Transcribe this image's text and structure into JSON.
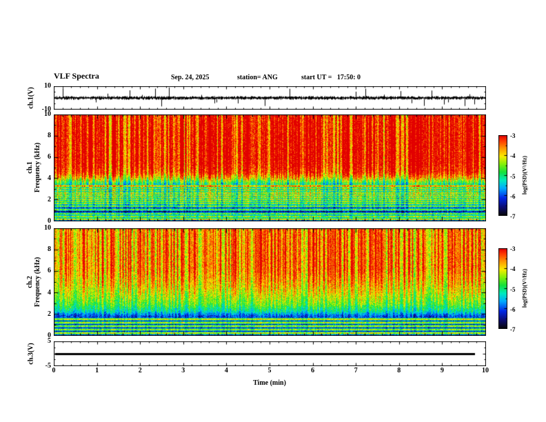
{
  "header": {
    "title": "VLF Spectra",
    "date": "Sep. 24, 2025",
    "station": "station= ANG",
    "start_ut": "start UT =   17:50: 0"
  },
  "xaxis": {
    "label": "Time (min)",
    "tick_labels": [
      "0",
      "1",
      "2",
      "3",
      "4",
      "5",
      "6",
      "7",
      "8",
      "9",
      "10"
    ],
    "range_min": [
      0,
      10
    ]
  },
  "colorbar": {
    "label": "log(PSD)(V²/Hz)",
    "tick_labels": [
      "-3",
      "-4",
      "-5",
      "-6",
      "-7"
    ],
    "range": [
      -7,
      -3
    ]
  },
  "panels": {
    "wave1": {
      "axis_label": "ch.1(V)",
      "ylim": [
        -10,
        10
      ],
      "ytick_labels": [
        10,
        -10
      ]
    },
    "spec1": {
      "axis_label_line1": "ch.1",
      "axis_label_line2": "Frequency (kHz)",
      "ylim": [
        0,
        10
      ],
      "ytick_labels": [
        0,
        2,
        4,
        6,
        8,
        10
      ]
    },
    "spec2": {
      "axis_label_line1": "ch.2",
      "axis_label_line2": "Frequency (kHz)",
      "ylim": [
        0,
        10
      ],
      "ytick_labels": [
        0,
        2,
        4,
        6,
        8,
        10
      ]
    },
    "wave3": {
      "axis_label": "ch.3(V)",
      "ylim": [
        -5,
        5
      ],
      "ytick_labels": [
        5,
        -5
      ]
    }
  },
  "style": {
    "background": "#ffffff",
    "frame": "#000000"
  },
  "chart_data": [
    {
      "type": "line",
      "name": "ch1_waveform",
      "panel_label": "ch.1(V)",
      "x_range_min": [
        0,
        10
      ],
      "ylim_v": [
        -10,
        10
      ],
      "summary": "Dense broadband noise band about 0 V (roughly ±1.5 V) with frequent impulsive sferic spikes reaching ±9 V",
      "gen": {
        "noise_vmin": 0.3,
        "noise_vmax": 1.6,
        "spike_prob": 0.05,
        "spike_vmin": 2.5,
        "spike_vmax": 9
      },
      "seed": 424242
    },
    {
      "type": "heatmap",
      "name": "ch1_spectrogram",
      "panel_label": "ch.1 Frequency (kHz)",
      "x_range_min": [
        0,
        10
      ],
      "y_range_khz": [
        0,
        10
      ],
      "scale_label": "log(PSD)(V²/Hz)",
      "scale_range": [
        -7,
        -3
      ],
      "colormap": "black-blue-cyan-green-yellow-orange-red",
      "summary": "Intense red/yellow broadband sferic activity above ~4.5 kHz; dark low-PSD band 1-3.5 kHz crossed by thin bright horizontal lines; vertical lightning streaks span all frequencies",
      "profile_khz_logpsd": [
        [
          0,
          -6.1
        ],
        [
          0.4,
          -6.5
        ],
        [
          0.9,
          -6.85
        ],
        [
          1.6,
          -6.85
        ],
        [
          3.2,
          -6.7
        ],
        [
          3.6,
          -5.9
        ],
        [
          4.1,
          -5.0
        ],
        [
          4.6,
          -4.4
        ],
        [
          5.5,
          -4.15
        ],
        [
          8,
          -4.15
        ],
        [
          10,
          -4.25
        ]
      ],
      "lines_khz": [
        0.25,
        0.5,
        0.75,
        1.15,
        1.45,
        1.7,
        1.9,
        2.1,
        2.3,
        2.5,
        2.7,
        2.9,
        3.1,
        3.3
      ],
      "line_boost": 1.7,
      "streaks": {
        "prob": 0.55,
        "gain": 1.6,
        "flo": 1.0,
        "fhi": 4.5
      },
      "noise": 1.0,
      "seed": 20250924
    },
    {
      "type": "heatmap",
      "name": "ch2_spectrogram",
      "panel_label": "ch.2 Frequency (kHz)",
      "x_range_min": [
        0,
        10
      ],
      "y_range_khz": [
        0,
        10
      ],
      "scale_label": "log(PSD)(V²/Hz)",
      "scale_range": [
        -7,
        -3
      ],
      "colormap": "black-blue-cyan-green-yellow-orange-red",
      "summary": "Green/cyan background above ~2.5 kHz with red vertical sferic streaks strongest above 6 kHz; dark band below ~2 kHz with a few bright horizontal lines near 0.3-1.6 kHz",
      "profile_khz_logpsd": [
        [
          0,
          -6.2
        ],
        [
          0.5,
          -6.8
        ],
        [
          1.2,
          -6.7
        ],
        [
          1.9,
          -6.4
        ],
        [
          2.3,
          -5.7
        ],
        [
          3,
          -5.2
        ],
        [
          4,
          -4.9
        ],
        [
          5,
          -4.7
        ],
        [
          6.5,
          -4.55
        ],
        [
          10,
          -4.6
        ]
      ],
      "lines_khz": [
        0.3,
        0.6,
        0.95,
        1.25,
        1.55
      ],
      "line_boost": 2.0,
      "streaks": {
        "prob": 0.5,
        "gain": 1.5,
        "flo": 1.5,
        "fhi": 6.0
      },
      "noise": 0.9,
      "seed": 1750
    },
    {
      "type": "line",
      "name": "ch3_waveform",
      "panel_label": "ch.3(V)",
      "x_range_min": [
        0,
        10
      ],
      "ylim_v": [
        -5,
        5
      ],
      "summary": "Constant flat line at 0 V (channel inactive), drawn thick",
      "value_v": 0
    }
  ]
}
